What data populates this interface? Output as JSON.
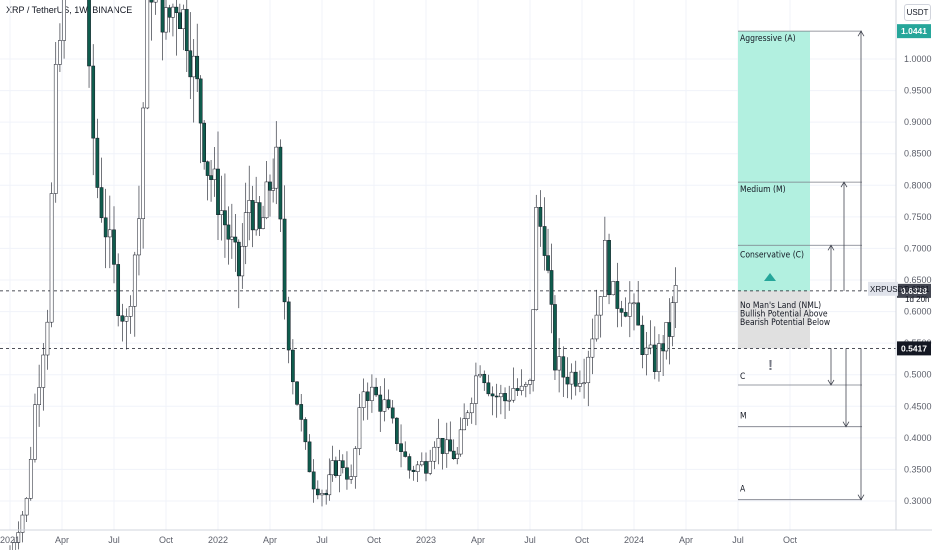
{
  "header": {
    "title": "XRP / TetherUS, 1W, BINANCE",
    "currency_button": "USDT"
  },
  "price_axis": {
    "ticks": [
      "1.0000",
      "0.9500",
      "0.9000",
      "0.8500",
      "0.8000",
      "0.7500",
      "0.7000",
      "0.6500",
      "0.6000",
      "0.5500",
      "0.5000",
      "0.4500",
      "0.4000",
      "0.3500",
      "0.3000"
    ],
    "tags": {
      "top": {
        "label": "1.0441",
        "color": "#26a69a"
      },
      "upper_level": {
        "label": "0.6328",
        "color": "#434651"
      },
      "symbol": {
        "label": "XRPUSDT",
        "price": "0.6281",
        "countdown": "1d 20h"
      },
      "lower_level": {
        "label": "0.5417",
        "color": "#131722"
      }
    }
  },
  "time_axis": {
    "labels": [
      "2021",
      "Apr",
      "Jul",
      "Oct",
      "2022",
      "Apr",
      "Jul",
      "Oct",
      "2023",
      "Apr",
      "Jul",
      "Oct",
      "2024",
      "Apr",
      "Jul",
      "Oct"
    ]
  },
  "zones": {
    "aggressive": "Aggressive (A)",
    "medium": "Medium (M)",
    "conservative": "Conservative (C)",
    "nml": [
      "No Man's Land (NML)",
      "Bullish Potential Above",
      "Bearish Potential Below"
    ],
    "down_c": "C",
    "down_m": "M",
    "down_a": "A",
    "warning": "!"
  },
  "colors": {
    "up": "#ffffff",
    "up_border": "#131722",
    "down": "#0f5c4d",
    "green_zone": "#b2f0e0",
    "grey_zone": "#e0e0e0",
    "accent": "#26a69a"
  },
  "chart_data": {
    "type": "candlestick",
    "title": "XRP / TetherUS, 1W, BINANCE",
    "ylim": [
      0.28,
      1.08
    ],
    "grid": true,
    "levels": {
      "aggressive_target": 1.0441,
      "medium_target": 0.805,
      "conservative_target": 0.705,
      "nml_top": 0.6328,
      "nml_bottom": 0.5417,
      "downside_c": 0.4837,
      "downside_m": 0.4177,
      "downside_a": 0.3021,
      "last_price": 0.6281
    },
    "weekly_close_path": [
      [
        2021.0,
        0.22
      ],
      [
        2021.08,
        0.3
      ],
      [
        2021.12,
        0.45
      ],
      [
        2021.18,
        0.6
      ],
      [
        2021.22,
        0.95
      ],
      [
        2021.3,
        1.25
      ],
      [
        2021.35,
        1.4
      ],
      [
        2021.38,
        0.95
      ],
      [
        2021.42,
        0.8
      ],
      [
        2021.48,
        0.7
      ],
      [
        2021.52,
        0.62
      ],
      [
        2021.56,
        0.58
      ],
      [
        2021.62,
        0.75
      ],
      [
        2021.66,
        1.1
      ],
      [
        2021.7,
        1.15
      ],
      [
        2021.75,
        1.05
      ],
      [
        2021.8,
        1.1
      ],
      [
        2021.85,
        1.05
      ],
      [
        2021.9,
        0.95
      ],
      [
        2021.95,
        0.83
      ],
      [
        2022.0,
        0.78
      ],
      [
        2022.05,
        0.72
      ],
      [
        2022.1,
        0.66
      ],
      [
        2022.15,
        0.78
      ],
      [
        2022.2,
        0.72
      ],
      [
        2022.25,
        0.8
      ],
      [
        2022.28,
        0.83
      ],
      [
        2022.32,
        0.62
      ],
      [
        2022.36,
        0.5
      ],
      [
        2022.42,
        0.38
      ],
      [
        2022.46,
        0.33
      ],
      [
        2022.52,
        0.31
      ],
      [
        2022.55,
        0.35
      ],
      [
        2022.6,
        0.36
      ],
      [
        2022.64,
        0.33
      ],
      [
        2022.7,
        0.48
      ],
      [
        2022.74,
        0.47
      ],
      [
        2022.8,
        0.45
      ],
      [
        2022.86,
        0.4
      ],
      [
        2022.92,
        0.35
      ],
      [
        2023.0,
        0.36
      ],
      [
        2023.04,
        0.4
      ],
      [
        2023.1,
        0.38
      ],
      [
        2023.15,
        0.37
      ],
      [
        2023.2,
        0.45
      ],
      [
        2023.26,
        0.52
      ],
      [
        2023.32,
        0.47
      ],
      [
        2023.38,
        0.46
      ],
      [
        2023.42,
        0.48
      ],
      [
        2023.46,
        0.47
      ],
      [
        2023.5,
        0.48
      ],
      [
        2023.53,
        0.75
      ],
      [
        2023.57,
        0.72
      ],
      [
        2023.62,
        0.52
      ],
      [
        2023.66,
        0.5
      ],
      [
        2023.72,
        0.5
      ],
      [
        2023.76,
        0.51
      ],
      [
        2023.82,
        0.6
      ],
      [
        2023.86,
        0.69
      ],
      [
        2023.9,
        0.62
      ],
      [
        2023.94,
        0.62
      ],
      [
        2023.98,
        0.61
      ],
      [
        2024.02,
        0.57
      ],
      [
        2024.06,
        0.53
      ],
      [
        2024.1,
        0.52
      ],
      [
        2024.14,
        0.55
      ],
      [
        2024.17,
        0.57
      ],
      [
        2024.2,
        0.63
      ]
    ]
  }
}
